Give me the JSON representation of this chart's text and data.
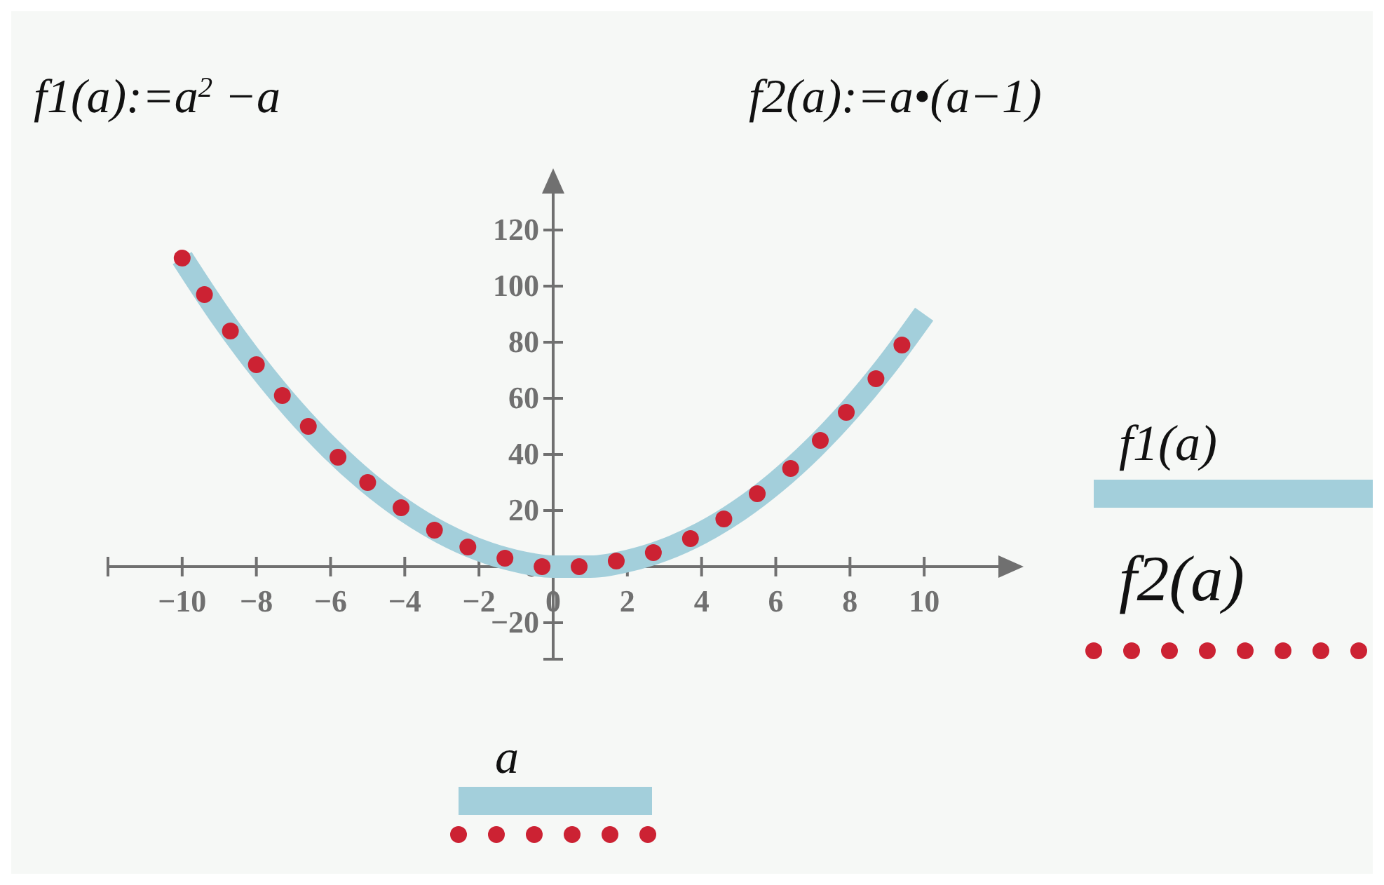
{
  "chart_data": {
    "type": "line",
    "annotations": [
      "f1(a):=a$^{2}$ −a",
      "f2(a):=a•(a−1)"
    ],
    "xlabel": "a",
    "xlim": [
      -12,
      12
    ],
    "ylim": [
      -33,
      133
    ],
    "xticks": [
      {
        "value": -12,
        "label": null
      },
      -10,
      -8,
      -6,
      -4,
      -2,
      0,
      2,
      4,
      6,
      8,
      10
    ],
    "yticks": [
      -20,
      0,
      20,
      40,
      60,
      80,
      100,
      120
    ],
    "legend": "right",
    "series": [
      {
        "name": "f1(a)",
        "color": "#a3cfdb",
        "line_style": "solid",
        "x": [
          -10,
          -9,
          -8,
          -7,
          -6,
          -5,
          -4,
          -3,
          -2,
          -1,
          0,
          1,
          2,
          3,
          4,
          5,
          6,
          7,
          8,
          9,
          10
        ],
        "values": [
          110,
          90,
          72,
          56,
          42,
          30,
          20,
          12,
          6,
          2,
          0,
          0,
          2,
          6,
          12,
          20,
          30,
          42,
          56,
          72,
          90
        ]
      },
      {
        "name": "f2(a)",
        "type": "scatter",
        "color": "#cc2233",
        "marker": "circle",
        "x": [
          -10,
          -9.4,
          -8.7,
          -8,
          -7.3,
          -6.6,
          -5.8,
          -5,
          -4.1,
          -3.2,
          -2.3,
          -1.3,
          -0.3,
          0.7,
          1.7,
          2.7,
          3.7,
          4.6,
          5.5,
          6.4,
          7.2,
          7.9,
          8.7,
          9.4
        ],
        "values": [
          110,
          97,
          84,
          72,
          61,
          50,
          39,
          30,
          21,
          13,
          7,
          3,
          0,
          0,
          2,
          5,
          10,
          17,
          26,
          35,
          45,
          55,
          67,
          79
        ]
      }
    ]
  }
}
